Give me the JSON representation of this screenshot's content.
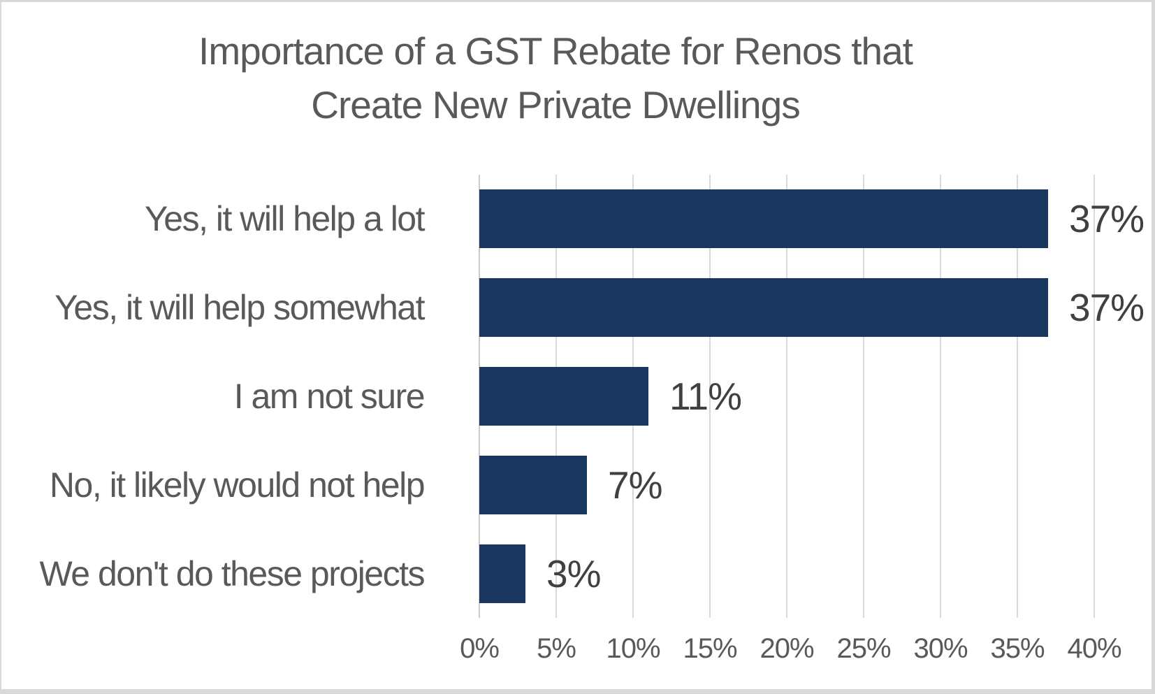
{
  "title": {
    "line1": "Importance of a GST Rebate for Renos that",
    "line2": "Create New Private Dwellings"
  },
  "chart_data": {
    "type": "bar",
    "orientation": "horizontal",
    "title": "Importance of a GST Rebate for Renos that Create New Private Dwellings",
    "categories": [
      "Yes, it will help a lot",
      "Yes, it will help somewhat",
      "I am not sure",
      "No, it likely would not help",
      "We don't do these projects"
    ],
    "values": [
      37,
      37,
      11,
      7,
      3
    ],
    "value_labels": [
      "37%",
      "37%",
      "11%",
      "7%",
      "3%"
    ],
    "x_ticks": [
      "0%",
      "5%",
      "10%",
      "15%",
      "20%",
      "25%",
      "30%",
      "35%",
      "40%"
    ],
    "x_tick_values": [
      0,
      5,
      10,
      15,
      20,
      25,
      30,
      35,
      40
    ],
    "xlim": [
      0,
      40
    ],
    "grid": true,
    "legend": false,
    "data_labels": "outside-end",
    "colors": {
      "bar": "#19375F",
      "title_text": "#595959",
      "category_text": "#595959",
      "value_text": "#404040",
      "tick_text": "#595959",
      "gridline": "#D9D9D9",
      "axis_line": "#CCCCCC",
      "background": "#FFFFFF",
      "frame_border": "#D9D9D9"
    }
  }
}
